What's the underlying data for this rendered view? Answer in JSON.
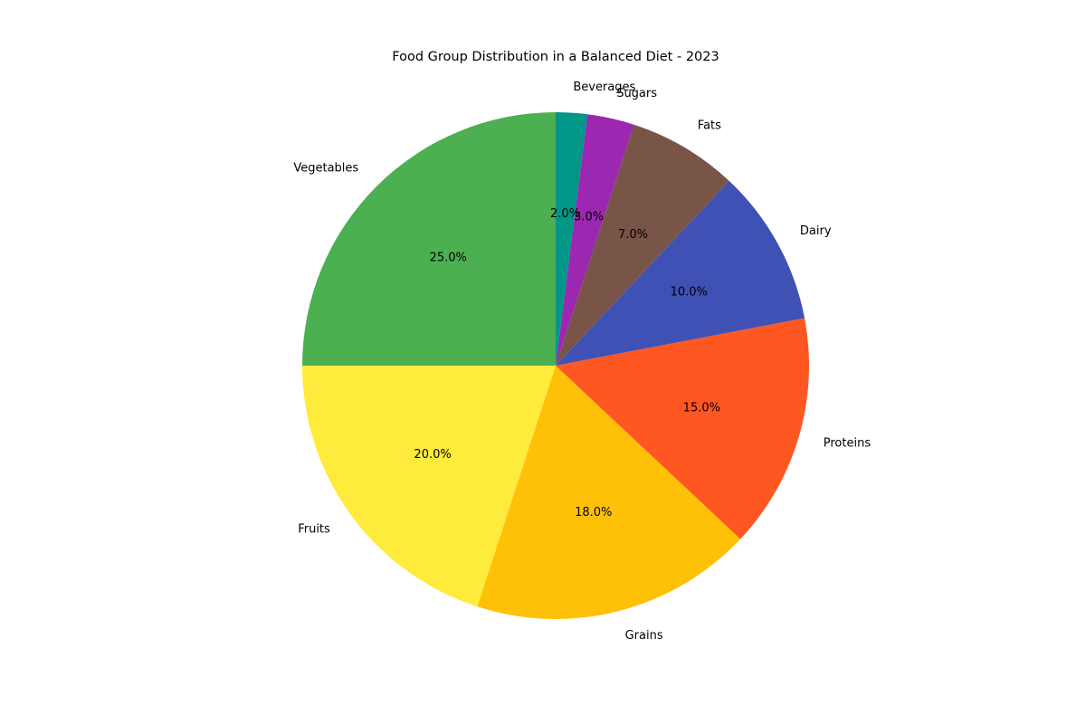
{
  "chart_data": {
    "type": "pie",
    "title": "Food Group Distribution in a Balanced Diet - 2023",
    "categories": [
      "Beverages",
      "Sugars",
      "Fats",
      "Dairy",
      "Proteins",
      "Grains",
      "Fruits",
      "Vegetables"
    ],
    "values": [
      2.0,
      3.0,
      7.0,
      10.0,
      15.0,
      18.0,
      20.0,
      25.0
    ],
    "value_labels": [
      "2.0%",
      "3.0%",
      "7.0%",
      "10.0%",
      "15.0%",
      "18.0%",
      "20.0%",
      "25.0%"
    ],
    "colors": [
      "#009688",
      "#9c27b0",
      "#795548",
      "#3f51b5",
      "#ff5722",
      "#ffc107",
      "#ffeb3b",
      "#4caf50"
    ],
    "start_angle_deg": 90,
    "direction": "clockwise",
    "legend": "none"
  }
}
